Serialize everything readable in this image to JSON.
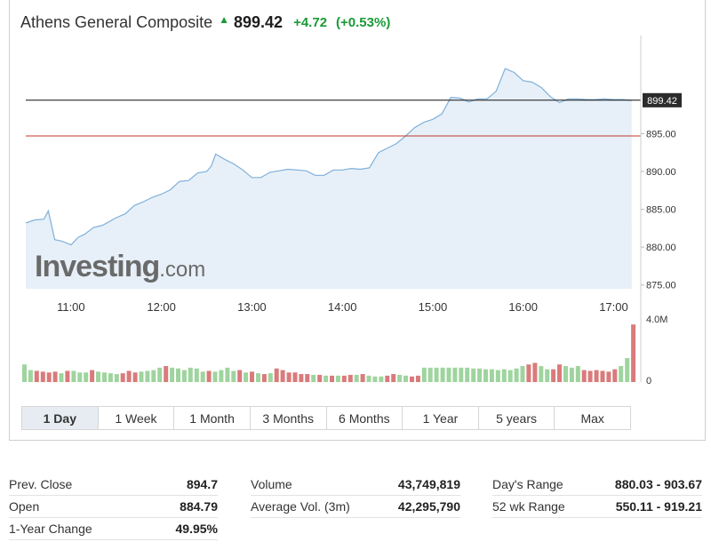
{
  "header": {
    "name": "Athens General Composite",
    "direction_icon": "triangle-up-icon",
    "price": "899.42",
    "change": "+4.72",
    "change_pct": "(+0.53%)"
  },
  "colors": {
    "up": "#1a9a37",
    "line": "#7fb0da",
    "area": "#e7f0f8",
    "volume_up": "#9fd49f",
    "volume_down": "#d97b7b",
    "prev_close_line": "#c0392b",
    "current_line": "#111111"
  },
  "watermark": {
    "brand": "Investing",
    "suffix": ".com"
  },
  "chart_data": {
    "type": "line",
    "title": "Athens General Composite",
    "x_tick_labels": [
      "11:00",
      "12:00",
      "13:00",
      "14:00",
      "15:00",
      "16:00",
      "17:00"
    ],
    "x_tick_times": [
      11,
      12,
      13,
      14,
      15,
      16,
      17
    ],
    "x_range": [
      10.5,
      17.3
    ],
    "y_tick_labels": [
      "875.00",
      "880.00",
      "885.00",
      "890.00",
      "895.00"
    ],
    "y_tick_values": [
      875,
      880,
      885,
      890,
      895
    ],
    "y_range": [
      874.5,
      907.5
    ],
    "current_price_label": "899.42",
    "current_price": 899.42,
    "prev_close": 894.7,
    "series": [
      {
        "x": [
          10.5,
          10.6,
          10.7,
          10.75,
          10.82,
          10.9,
          11.0,
          11.08,
          11.15,
          11.25,
          11.35,
          11.5,
          11.6,
          11.7,
          11.8,
          11.9,
          12.0,
          12.1,
          12.2,
          12.3,
          12.4,
          12.5,
          12.55,
          12.6,
          12.7,
          12.8,
          12.9,
          13.0,
          13.1,
          13.2,
          13.3,
          13.4,
          13.5,
          13.6,
          13.7,
          13.8,
          13.9,
          14.0,
          14.1,
          14.2,
          14.3,
          14.4,
          14.5,
          14.6,
          14.7,
          14.8,
          14.9,
          15.0,
          15.1,
          15.2,
          15.3,
          15.4,
          15.5,
          15.6,
          15.7,
          15.8,
          15.9,
          16.0,
          16.1,
          16.2,
          16.3,
          16.4,
          16.5,
          16.6,
          16.7,
          16.8,
          16.9,
          17.0,
          17.1,
          17.2
        ],
        "y": [
          883.2,
          883.6,
          883.7,
          884.8,
          881.0,
          880.8,
          880.3,
          881.3,
          881.7,
          882.6,
          882.9,
          883.9,
          884.4,
          885.5,
          886.0,
          886.6,
          887.0,
          887.6,
          888.7,
          888.8,
          889.8,
          890.0,
          890.7,
          892.3,
          891.6,
          891.0,
          890.2,
          889.2,
          889.2,
          889.9,
          890.1,
          890.3,
          890.2,
          890.1,
          889.5,
          889.5,
          890.2,
          890.2,
          890.4,
          890.3,
          890.5,
          892.5,
          893.1,
          893.7,
          894.7,
          895.8,
          896.5,
          896.9,
          897.6,
          899.8,
          899.7,
          899.2,
          899.6,
          899.6,
          900.6,
          903.6,
          903.1,
          902.0,
          901.8,
          901.1,
          899.9,
          899.1,
          899.6,
          899.6,
          899.5,
          899.5,
          899.6,
          899.5,
          899.5,
          899.4
        ]
      }
    ],
    "volume": {
      "top_label": "4.0M",
      "bottom_label": "0",
      "max": 4000000,
      "values": [
        1100000,
        750000,
        700000,
        650000,
        600000,
        650000,
        550000,
        700000,
        700000,
        600000,
        600000,
        750000,
        650000,
        600000,
        550000,
        500000,
        550000,
        700000,
        600000,
        650000,
        700000,
        750000,
        900000,
        1000000,
        900000,
        850000,
        750000,
        900000,
        850000,
        650000,
        700000,
        650000,
        750000,
        900000,
        700000,
        750000,
        600000,
        650000,
        550000,
        500000,
        550000,
        850000,
        750000,
        600000,
        600000,
        500000,
        500000,
        450000,
        450000,
        400000,
        400000,
        400000,
        400000,
        450000,
        450000,
        500000,
        400000,
        350000,
        350000,
        400000,
        500000,
        450000,
        400000,
        350000,
        400000,
        900000,
        900000,
        900000,
        900000,
        900000,
        900000,
        900000,
        900000,
        850000,
        850000,
        800000,
        800000,
        750000,
        800000,
        750000,
        850000,
        1000000,
        1100000,
        1200000,
        1000000,
        800000,
        800000,
        1100000,
        1000000,
        900000,
        1000000,
        750000,
        700000,
        750000,
        700000,
        650000,
        800000,
        1000000,
        1500000,
        3600000
      ],
      "up": [
        true,
        true,
        false,
        false,
        false,
        false,
        true,
        false,
        true,
        true,
        true,
        false,
        true,
        true,
        true,
        true,
        false,
        false,
        false,
        true,
        true,
        true,
        true,
        false,
        true,
        true,
        true,
        true,
        true,
        true,
        false,
        true,
        true,
        true,
        true,
        false,
        true,
        false,
        true,
        false,
        true,
        false,
        false,
        false,
        false,
        false,
        false,
        true,
        false,
        true,
        false,
        true,
        false,
        false,
        true,
        false,
        true,
        true,
        true,
        false,
        false,
        true,
        true,
        false,
        false,
        true,
        true,
        true,
        true,
        true,
        true,
        true,
        true,
        true,
        true,
        true,
        true,
        true,
        true,
        true,
        true,
        true,
        false,
        false,
        true,
        true,
        false,
        false,
        true,
        true,
        true,
        false,
        false,
        false,
        false,
        false,
        false,
        true,
        true,
        false
      ]
    }
  },
  "range_tabs": [
    "1 Day",
    "1 Week",
    "1 Month",
    "3 Months",
    "6 Months",
    "1 Year",
    "5 years",
    "Max"
  ],
  "active_tab": "1 Day",
  "stats": [
    {
      "label": "Prev. Close",
      "value": "894.7"
    },
    {
      "label": "Volume",
      "value": "43,749,819"
    },
    {
      "label": "Day's Range",
      "value": "880.03 - 903.67"
    },
    {
      "label": "Open",
      "value": "884.79"
    },
    {
      "label": "Average Vol. (3m)",
      "value": "42,295,790"
    },
    {
      "label": "52 wk Range",
      "value": "550.11 - 919.21"
    },
    {
      "label": "1-Year Change",
      "value": "49.95%"
    }
  ]
}
